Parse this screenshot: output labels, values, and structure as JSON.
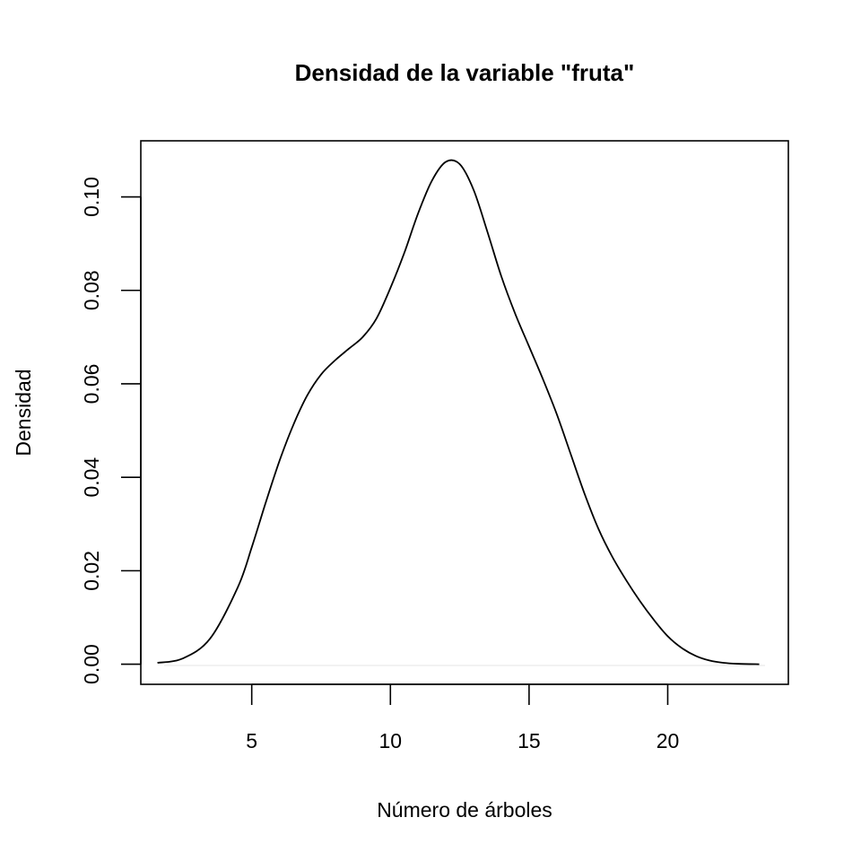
{
  "chart_data": {
    "type": "line",
    "title": "Densidad de la variable \"fruta\"",
    "xlabel": "Número de árboles",
    "ylabel": "Densidad",
    "xlim": [
      1.0,
      24.35
    ],
    "ylim": [
      -0.0043,
      0.112
    ],
    "x_ticks": [
      5,
      10,
      15,
      20
    ],
    "y_ticks": [
      0.0,
      0.02,
      0.04,
      0.06,
      0.08,
      0.1
    ],
    "x_tick_labels": [
      "5",
      "10",
      "15",
      "20"
    ],
    "y_tick_labels": [
      "0.00",
      "0.02",
      "0.04",
      "0.06",
      "0.08",
      "0.10"
    ],
    "grid": false,
    "series": [
      {
        "points": [
          [
            1.6,
            0.0003
          ],
          [
            2.5,
            0.0012
          ],
          [
            3.5,
            0.0055
          ],
          [
            4.5,
            0.0165
          ],
          [
            5.0,
            0.025
          ],
          [
            5.5,
            0.0345
          ],
          [
            6.0,
            0.0435
          ],
          [
            6.5,
            0.0512
          ],
          [
            7.0,
            0.0575
          ],
          [
            7.5,
            0.062
          ],
          [
            8.0,
            0.065
          ],
          [
            8.5,
            0.0675
          ],
          [
            9.0,
            0.07
          ],
          [
            9.5,
            0.074
          ],
          [
            10.0,
            0.0805
          ],
          [
            10.5,
            0.088
          ],
          [
            11.0,
            0.0965
          ],
          [
            11.5,
            0.1035
          ],
          [
            12.0,
            0.1075
          ],
          [
            12.5,
            0.107
          ],
          [
            13.0,
            0.1015
          ],
          [
            13.5,
            0.0925
          ],
          [
            14.0,
            0.083
          ],
          [
            14.5,
            0.075
          ],
          [
            15.0,
            0.068
          ],
          [
            15.5,
            0.061
          ],
          [
            16.0,
            0.0535
          ],
          [
            16.5,
            0.045
          ],
          [
            17.0,
            0.0365
          ],
          [
            17.5,
            0.029
          ],
          [
            18.0,
            0.023
          ],
          [
            18.5,
            0.018
          ],
          [
            19.0,
            0.0135
          ],
          [
            19.5,
            0.0095
          ],
          [
            20.0,
            0.006
          ],
          [
            20.5,
            0.0035
          ],
          [
            21.0,
            0.0018
          ],
          [
            21.5,
            0.0008
          ],
          [
            22.0,
            0.0003
          ],
          [
            22.5,
            0.0001
          ],
          [
            23.3,
            0.0
          ]
        ]
      }
    ]
  }
}
